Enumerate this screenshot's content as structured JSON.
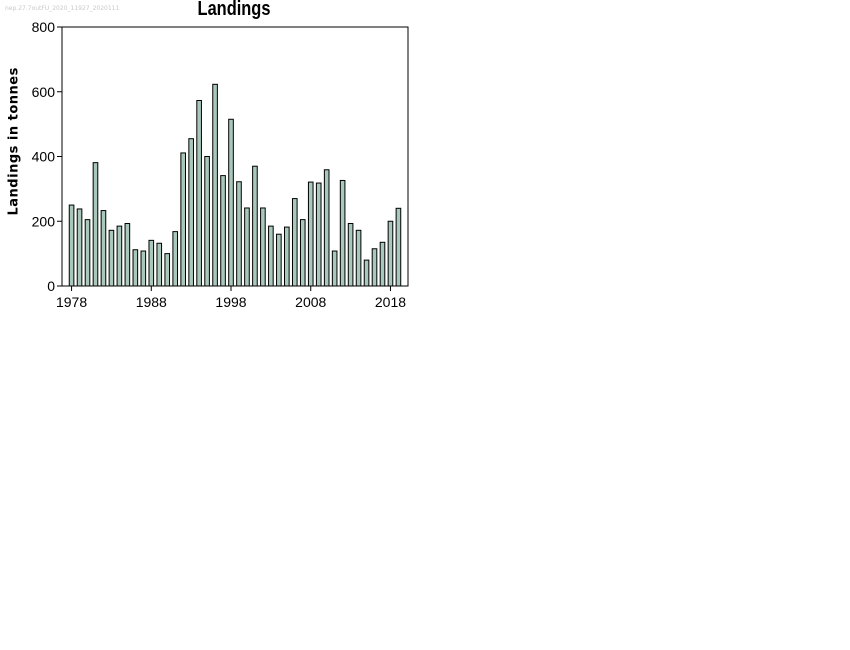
{
  "watermark": "nep.27.7outFU_2020_11927_2020111",
  "chart_data": {
    "type": "bar",
    "title": "Landings",
    "xlabel": "",
    "ylabel": "Landings in tonnes",
    "x": [
      1978,
      1979,
      1980,
      1981,
      1982,
      1983,
      1984,
      1985,
      1986,
      1987,
      1988,
      1989,
      1990,
      1991,
      1992,
      1993,
      1994,
      1995,
      1996,
      1997,
      1998,
      1999,
      2000,
      2001,
      2002,
      2003,
      2004,
      2005,
      2006,
      2007,
      2008,
      2009,
      2010,
      2011,
      2012,
      2013,
      2014,
      2015,
      2016,
      2017,
      2018,
      2019
    ],
    "values": [
      250,
      238,
      205,
      381,
      233,
      172,
      185,
      193,
      112,
      108,
      141,
      132,
      100,
      168,
      411,
      455,
      573,
      400,
      623,
      341,
      515,
      322,
      241,
      370,
      241,
      185,
      160,
      182,
      270,
      205,
      321,
      318,
      359,
      108,
      326,
      193,
      172,
      80,
      115,
      135,
      200,
      240
    ],
    "ylim": [
      0,
      800
    ],
    "yticks": [
      0,
      200,
      400,
      600,
      800
    ],
    "xticks": [
      1978,
      1988,
      1998,
      2008,
      2018
    ],
    "bar_color": "#a9c8bc",
    "bar_edge_color": "#000000",
    "grid": false,
    "legend": false
  }
}
